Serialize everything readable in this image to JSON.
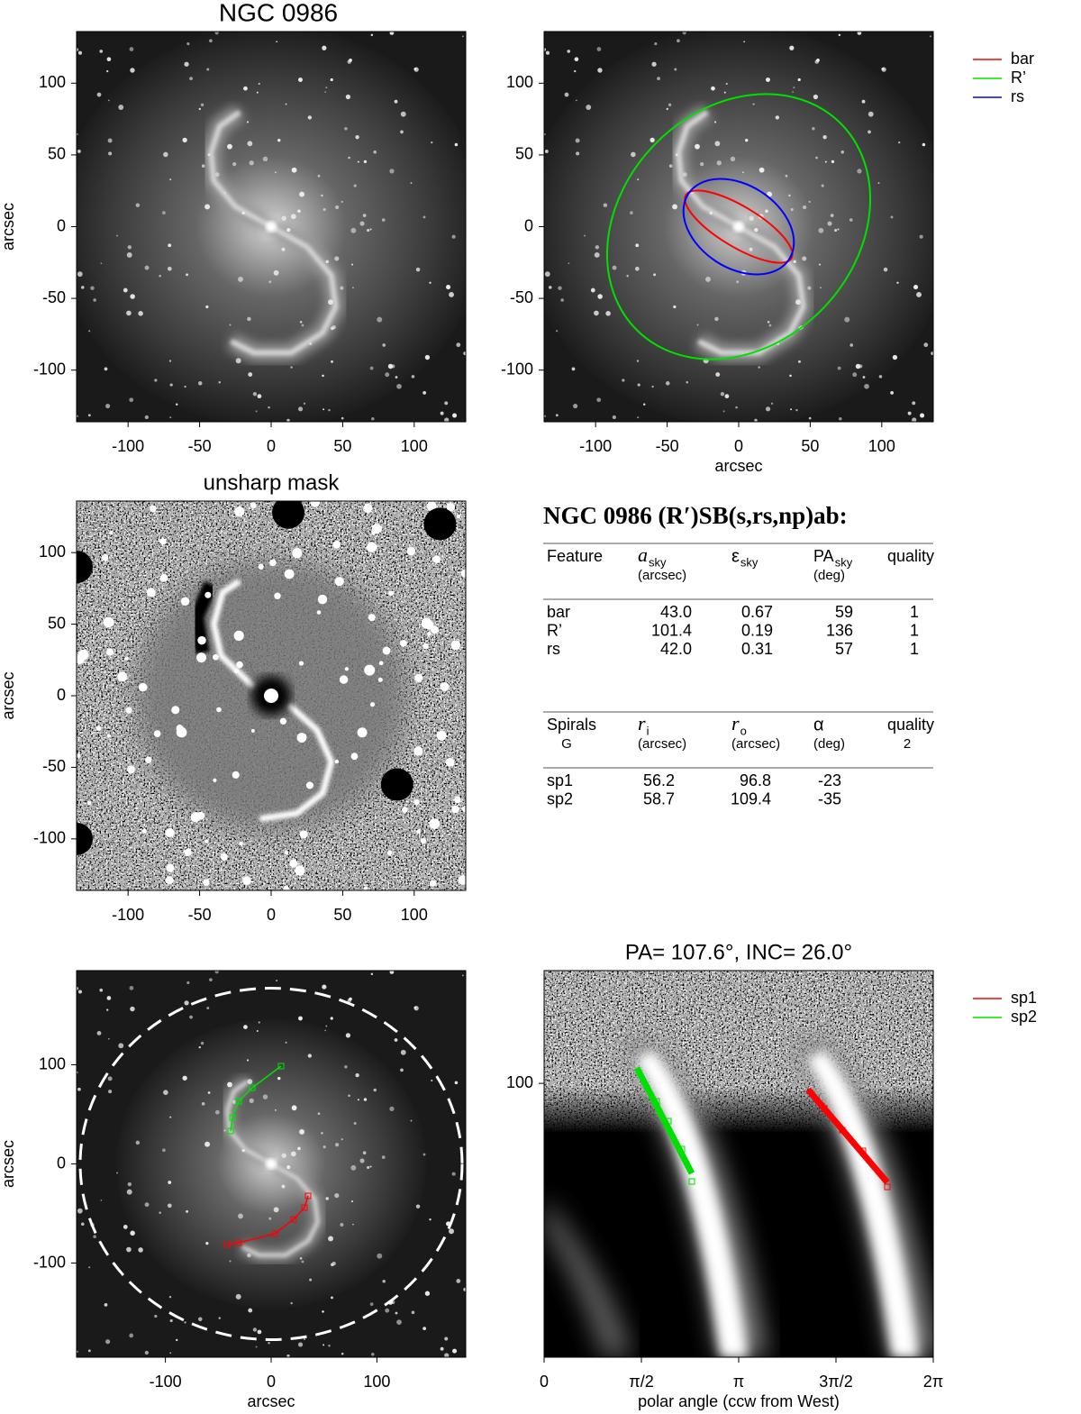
{
  "panels": [
    {
      "title": "NGC 0986",
      "ylabel": "arcsec",
      "xlim": [
        -136,
        136
      ],
      "ylim": [
        -136,
        136
      ],
      "xticks": [
        -100,
        -50,
        0,
        50,
        100
      ],
      "yticks": [
        -100,
        -50,
        0,
        50,
        100
      ]
    },
    {
      "xlabel": "arcsec",
      "xlim": [
        -136,
        136
      ],
      "ylim": [
        -136,
        136
      ],
      "xticks": [
        -100,
        -50,
        0,
        50,
        100
      ],
      "yticks": [
        -100,
        -50,
        0,
        50,
        100
      ],
      "legend": [
        {
          "name": "bar",
          "color": "#ff0000"
        },
        {
          "name": "R’",
          "color": "#00e000"
        },
        {
          "name": "rs",
          "color": "#0000ff"
        }
      ]
    },
    {
      "title": "unsharp mask",
      "ylabel": "arcsec",
      "xlim": [
        -136,
        136
      ],
      "ylim": [
        -136,
        136
      ],
      "xticks": [
        -100,
        -50,
        0,
        50,
        100
      ],
      "yticks": [
        -100,
        -50,
        0,
        50,
        100
      ]
    },
    {
      "xlabel": "arcsec",
      "ylabel": "arcsec",
      "xlim": [
        -184,
        184
      ],
      "ylim": [
        -195,
        195
      ],
      "xticks": [
        -100,
        0,
        100
      ],
      "yticks": [
        -100,
        0,
        100
      ]
    },
    {
      "title": "PA= 107.6°, INC=  26.0°",
      "xlabel": "polar angle (ccw from West)",
      "xlim": [
        0,
        6.2832
      ],
      "ylim": [
        20,
        194
      ],
      "ylog": true,
      "xticks": [
        0,
        {
          "value": 1.5708,
          "label": "π/2"
        },
        {
          "value": 3.1416,
          "label": "π"
        },
        {
          "value": 4.7124,
          "label": "3π/2"
        },
        {
          "value": 6.2832,
          "label": "2π"
        }
      ],
      "yticks": [
        100
      ],
      "legend": [
        {
          "name": "sp1",
          "color": "#ff0000"
        },
        {
          "name": "sp2",
          "color": "#00e000"
        }
      ]
    }
  ],
  "table1": {
    "title": "NGC 0986  (R′)SB(s,rs,np)ab:",
    "header": [
      {
        "label": "Feature"
      },
      {
        "label": "a",
        "sub": "sky",
        "unit": "(arcsec)"
      },
      {
        "label": "ε",
        "sub": "sky"
      },
      {
        "label": "PA",
        "sub": "sky",
        "unit": "(deg)"
      },
      {
        "label": "quality"
      }
    ],
    "rows": [
      [
        "bar",
        "43.0",
        "0.67",
        "59",
        "1"
      ],
      [
        "R’",
        "101.4",
        "0.19",
        "136",
        "1"
      ],
      [
        "rs",
        "42.0",
        "0.31",
        "57",
        "1"
      ]
    ]
  },
  "table2": {
    "header": [
      {
        "label": "Spirals",
        "note": "G"
      },
      {
        "label": "r",
        "sub": "i",
        "unit": "(arcsec)"
      },
      {
        "label": "r",
        "sub": "o",
        "unit": "(arcsec)"
      },
      {
        "label": "α",
        "unit": "(deg)"
      },
      {
        "label": "quality",
        "note": "2"
      }
    ],
    "rows": [
      [
        "sp1",
        "56.2",
        "96.8",
        "-23"
      ],
      [
        "sp2",
        "58.7",
        "109.4",
        "-35"
      ]
    ]
  }
}
